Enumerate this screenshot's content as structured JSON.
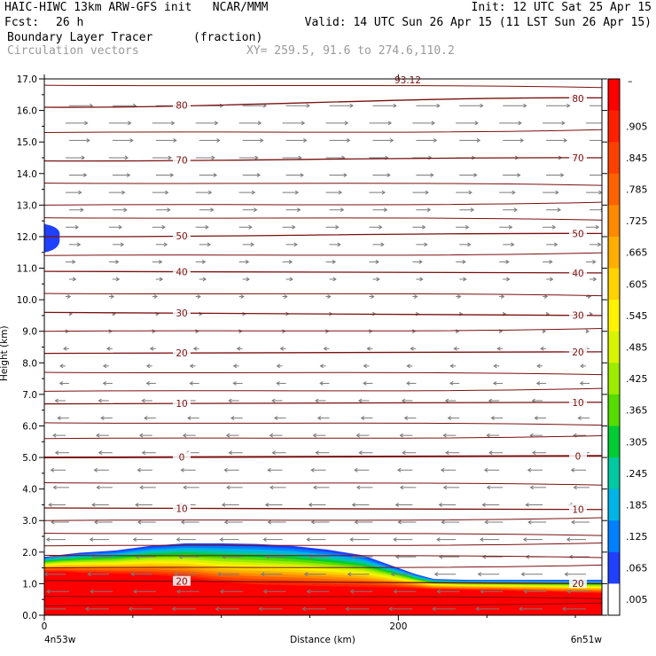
{
  "header": {
    "line1_left": "HAIC-HIWC 13km ARW-GFS init   NCAR/MMM",
    "line1_right": "Init: 12 UTC Sat 25 Apr 15",
    "fcst_label": "Fcst:",
    "fcst_value": "26 h",
    "valid": "Valid: 14 UTC Sun 26 Apr 15 (11 LST Sun 26 Apr 15)",
    "field_name": "Boundary Layer Tracer",
    "field_units": "(fraction)",
    "vector_name": "Circulation vectors",
    "xy_range": "XY= 259.5, 91.6 to 274.6,110.2"
  },
  "chart_data": {
    "type": "heatmap",
    "xlabel": "Distance (km)",
    "ylabel": "Height (km)",
    "xlim": [
      0,
      315
    ],
    "ylim": [
      0,
      17
    ],
    "x_ticks": [
      {
        "value": 0,
        "label": "0"
      },
      {
        "value": 200,
        "label": "200"
      }
    ],
    "y_ticks": [
      {
        "value": 0,
        "label": "0.0"
      },
      {
        "value": 1,
        "label": "1.0"
      },
      {
        "value": 2,
        "label": "2.0"
      },
      {
        "value": 3,
        "label": "3.0"
      },
      {
        "value": 4,
        "label": "4.0"
      },
      {
        "value": 5,
        "label": "5.0"
      },
      {
        "value": 6,
        "label": "6.0"
      },
      {
        "value": 7,
        "label": "7.0"
      },
      {
        "value": 8,
        "label": "8.0"
      },
      {
        "value": 9,
        "label": "9.0"
      },
      {
        "value": 10,
        "label": "10.0"
      },
      {
        "value": 11,
        "label": "11.0"
      },
      {
        "value": 12,
        "label": "12.0"
      },
      {
        "value": 13,
        "label": "13.0"
      },
      {
        "value": 14,
        "label": "14.0"
      },
      {
        "value": 15,
        "label": "15.0"
      },
      {
        "value": 16,
        "label": "16.0"
      },
      {
        "value": 17,
        "label": "17.0"
      }
    ],
    "x_endpoint_labels": {
      "left": "4n53w",
      "right": "6n51w"
    },
    "colorbar": {
      "labels": [
        ".905",
        ".845",
        ".785",
        ".725",
        ".665",
        ".605",
        ".545",
        ".485",
        ".425",
        ".365",
        ".305",
        ".245",
        ".185",
        ".125",
        ".065",
        ".005"
      ],
      "colors": [
        "#ff0000",
        "#ff2000",
        "#ff4000",
        "#ff6200",
        "#ff8a00",
        "#ffae00",
        "#ffd200",
        "#fff200",
        "#d8f400",
        "#9cec00",
        "#55dc00",
        "#00cc33",
        "#00c8a0",
        "#00b4e6",
        "#0080ff",
        "#2040ff",
        "#ffffff"
      ]
    },
    "contours": [
      {
        "label": "80",
        "y_left": 16.1,
        "y_right": 16.4
      },
      {
        "label": "70",
        "y_left": 14.4,
        "y_right": 14.5
      },
      {
        "label": "50",
        "y_left": 12.0,
        "y_right": 12.1
      },
      {
        "label": "40",
        "y_left": 10.9,
        "y_right": 10.85
      },
      {
        "label": "30",
        "y_left": 9.6,
        "y_right": 9.5
      },
      {
        "label": "20",
        "y_left": 8.3,
        "y_right": 8.35
      },
      {
        "label": "10",
        "y_left": 6.7,
        "y_right": 6.75
      },
      {
        "label": "0",
        "y_left": 5.0,
        "y_right": 5.05
      },
      {
        "label": "10",
        "y_left": 3.4,
        "y_right": 3.35
      },
      {
        "label": "20",
        "y_left": 1.1,
        "y_right": 1.0
      }
    ],
    "partial_top_label": "93.12"
  }
}
